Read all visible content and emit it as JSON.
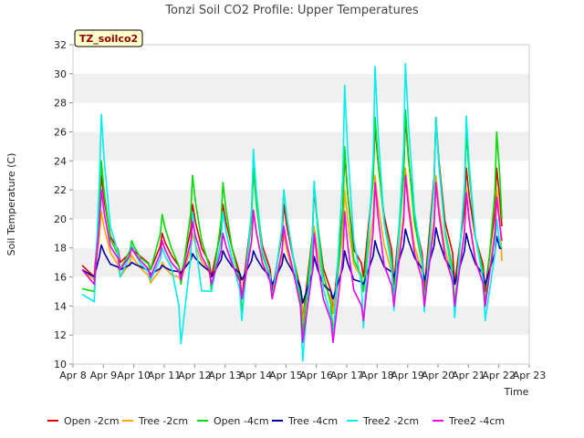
{
  "chart_data": {
    "type": "line",
    "title": "Tonzi Soil CO2 Profile: Upper Temperatures",
    "xlabel": "Time",
    "ylabel": "Soil Temperature (C)",
    "badge": "TZ_soilco2",
    "ylim": [
      10,
      32
    ],
    "xlim": [
      0,
      15
    ],
    "yticks": [
      10,
      12,
      14,
      16,
      18,
      20,
      22,
      24,
      26,
      28,
      30,
      32
    ],
    "xticks": [
      "Apr 8",
      "Apr 9",
      "Apr 10",
      "Apr 11",
      "Apr 12",
      "Apr 13",
      "Apr 14",
      "Apr 15",
      "Apr 16",
      "Apr 17",
      "Apr 18",
      "Apr 19",
      "Apr 20",
      "Apr 21",
      "Apr 22",
      "Apr 23"
    ],
    "grid": "horizontal bands",
    "legend_position": "bottom",
    "x_start_day": 0.3,
    "x_end_day": 14.1,
    "series": [
      {
        "name": "Open -2cm",
        "color": "#dd0000",
        "daily_max": [
          23.0,
          18.0,
          19.0,
          21.0,
          21.0,
          23.5,
          21.0,
          22.0,
          24.5,
          26.5,
          27.0,
          27.0,
          23.5,
          23.5
        ],
        "daily_min": [
          16.0,
          17.0,
          16.5,
          16.0,
          16.0,
          14.5,
          15.0,
          13.0,
          13.5,
          16.0,
          15.5,
          15.0,
          15.5,
          15.0
        ],
        "start": 16.8,
        "end": 19.5
      },
      {
        "name": "Tree -2cm",
        "color": "#ffa500",
        "daily_max": [
          20.5,
          17.5,
          17.0,
          19.0,
          19.0,
          20.5,
          19.0,
          19.5,
          22.0,
          23.0,
          23.5,
          23.0,
          22.0,
          22.0
        ],
        "daily_min": [
          15.8,
          16.0,
          15.6,
          15.8,
          15.5,
          14.5,
          14.5,
          13.0,
          13.5,
          15.0,
          14.5,
          14.5,
          14.0,
          14.0
        ],
        "start": 16.5,
        "end": 17.1
      },
      {
        "name": "Open -4cm",
        "color": "#00dd00",
        "daily_max": [
          24.0,
          18.5,
          20.3,
          23.0,
          22.5,
          23.5,
          22.0,
          22.5,
          25.0,
          27.0,
          27.5,
          27.0,
          26.0,
          26.0
        ],
        "daily_min": [
          15.0,
          16.5,
          16.5,
          15.5,
          15.0,
          13.5,
          14.5,
          12.0,
          12.0,
          15.0,
          14.5,
          14.0,
          14.0,
          14.0
        ],
        "start": 15.2,
        "end": 20.0
      },
      {
        "name": "Tree -4cm",
        "color": "#0000aa",
        "daily_max": [
          18.2,
          17.0,
          16.8,
          17.6,
          17.8,
          17.8,
          17.6,
          17.4,
          17.8,
          18.5,
          19.3,
          19.4,
          19.0,
          18.8
        ],
        "daily_min": [
          16.0,
          16.5,
          16.2,
          16.3,
          16.0,
          15.8,
          15.5,
          14.2,
          14.5,
          15.5,
          16.0,
          15.8,
          15.5,
          15.5
        ],
        "start": 16.5,
        "end": 18.0
      },
      {
        "name": "Tree2 -2cm",
        "color": "#00eeee",
        "daily_max": [
          27.2,
          18.2,
          18.0,
          20.5,
          20.5,
          24.8,
          22.0,
          22.6,
          29.2,
          30.5,
          30.7,
          27.0,
          27.1,
          20.0
        ],
        "daily_min": [
          14.3,
          16.0,
          15.8,
          11.4,
          15.0,
          13.0,
          14.5,
          10.2,
          11.5,
          12.5,
          13.7,
          13.6,
          13.2,
          13.0
        ],
        "start": 14.8,
        "end": 18.0
      },
      {
        "name": "Tree2 -4cm",
        "color": "#ee00ee",
        "daily_max": [
          22.0,
          18.0,
          18.5,
          19.8,
          19.0,
          20.6,
          19.5,
          19.0,
          20.5,
          22.5,
          23.0,
          22.5,
          21.8,
          21.5
        ],
        "daily_min": [
          15.5,
          16.5,
          16.0,
          15.8,
          15.5,
          14.5,
          14.5,
          11.5,
          11.5,
          13.0,
          14.0,
          14.0,
          14.0,
          14.0
        ],
        "start": 16.5,
        "end": 18.5
      }
    ]
  }
}
